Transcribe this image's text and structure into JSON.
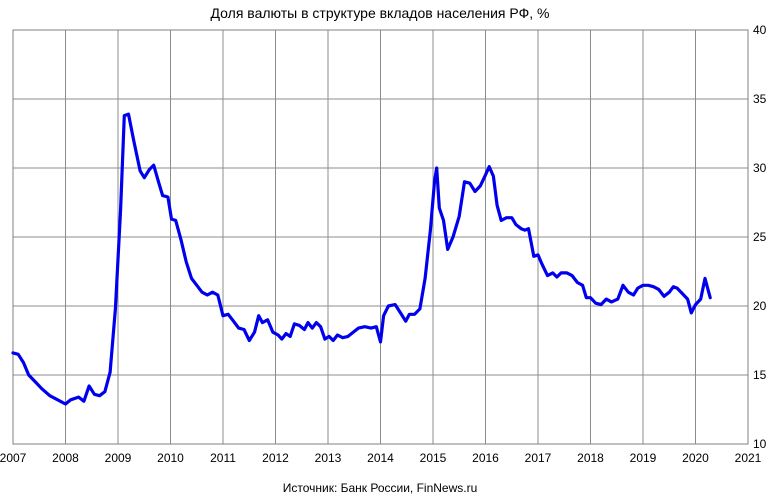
{
  "chart_data": {
    "type": "line",
    "title": "Доля валюты в структуре вкладов населения РФ, %",
    "source": "Источник: Банк России, FinNews.ru",
    "xlabel": "",
    "ylabel": "",
    "xlim": [
      2007,
      2021
    ],
    "ylim": [
      10,
      40
    ],
    "x_ticks": [
      "2007",
      "2008",
      "2009",
      "2010",
      "2011",
      "2012",
      "2013",
      "2014",
      "2015",
      "2016",
      "2017",
      "2018",
      "2019",
      "2020",
      "2021"
    ],
    "y_ticks": [
      "10",
      "15",
      "20",
      "25",
      "30",
      "35",
      "40"
    ],
    "y_axis_side": "right",
    "grid": true,
    "line_color": "#0000ee",
    "series": [
      {
        "values": [
          [
            2007.0,
            16.6
          ],
          [
            2007.1,
            16.5
          ],
          [
            2007.2,
            15.9
          ],
          [
            2007.3,
            15.0
          ],
          [
            2007.4,
            14.6
          ],
          [
            2007.55,
            14.0
          ],
          [
            2007.7,
            13.5
          ],
          [
            2007.85,
            13.2
          ],
          [
            2008.0,
            12.9
          ],
          [
            2008.1,
            13.2
          ],
          [
            2008.25,
            13.4
          ],
          [
            2008.35,
            13.1
          ],
          [
            2008.45,
            14.2
          ],
          [
            2008.55,
            13.6
          ],
          [
            2008.65,
            13.5
          ],
          [
            2008.75,
            13.8
          ],
          [
            2008.85,
            15.2
          ],
          [
            2008.95,
            19.8
          ],
          [
            2009.05,
            27.0
          ],
          [
            2009.12,
            33.8
          ],
          [
            2009.2,
            33.9
          ],
          [
            2009.3,
            32.0
          ],
          [
            2009.42,
            29.8
          ],
          [
            2009.5,
            29.3
          ],
          [
            2009.6,
            29.9
          ],
          [
            2009.68,
            30.2
          ],
          [
            2009.78,
            28.9
          ],
          [
            2009.85,
            28.0
          ],
          [
            2009.95,
            27.9
          ],
          [
            2010.02,
            26.3
          ],
          [
            2010.1,
            26.2
          ],
          [
            2010.2,
            24.8
          ],
          [
            2010.3,
            23.2
          ],
          [
            2010.4,
            22.0
          ],
          [
            2010.5,
            21.5
          ],
          [
            2010.6,
            21.0
          ],
          [
            2010.7,
            20.8
          ],
          [
            2010.8,
            21.0
          ],
          [
            2010.9,
            20.8
          ],
          [
            2011.0,
            19.3
          ],
          [
            2011.1,
            19.4
          ],
          [
            2011.2,
            18.9
          ],
          [
            2011.3,
            18.4
          ],
          [
            2011.4,
            18.3
          ],
          [
            2011.5,
            17.5
          ],
          [
            2011.6,
            18.1
          ],
          [
            2011.68,
            19.3
          ],
          [
            2011.75,
            18.8
          ],
          [
            2011.85,
            19.0
          ],
          [
            2011.95,
            18.1
          ],
          [
            2012.05,
            17.9
          ],
          [
            2012.12,
            17.6
          ],
          [
            2012.2,
            18.0
          ],
          [
            2012.28,
            17.8
          ],
          [
            2012.36,
            18.7
          ],
          [
            2012.45,
            18.6
          ],
          [
            2012.55,
            18.3
          ],
          [
            2012.62,
            18.8
          ],
          [
            2012.7,
            18.4
          ],
          [
            2012.78,
            18.8
          ],
          [
            2012.86,
            18.5
          ],
          [
            2012.94,
            17.6
          ],
          [
            2013.02,
            17.8
          ],
          [
            2013.1,
            17.5
          ],
          [
            2013.18,
            17.9
          ],
          [
            2013.28,
            17.7
          ],
          [
            2013.38,
            17.8
          ],
          [
            2013.48,
            18.1
          ],
          [
            2013.58,
            18.4
          ],
          [
            2013.7,
            18.5
          ],
          [
            2013.82,
            18.4
          ],
          [
            2013.92,
            18.5
          ],
          [
            2014.0,
            17.4
          ],
          [
            2014.06,
            19.3
          ],
          [
            2014.15,
            20.0
          ],
          [
            2014.28,
            20.1
          ],
          [
            2014.38,
            19.5
          ],
          [
            2014.48,
            18.9
          ],
          [
            2014.55,
            19.4
          ],
          [
            2014.65,
            19.4
          ],
          [
            2014.75,
            19.8
          ],
          [
            2014.85,
            22.0
          ],
          [
            2014.95,
            25.5
          ],
          [
            2015.03,
            29.1
          ],
          [
            2015.07,
            30.0
          ],
          [
            2015.12,
            27.1
          ],
          [
            2015.2,
            26.2
          ],
          [
            2015.28,
            24.1
          ],
          [
            2015.38,
            25.0
          ],
          [
            2015.5,
            26.5
          ],
          [
            2015.6,
            29.0
          ],
          [
            2015.7,
            28.9
          ],
          [
            2015.8,
            28.3
          ],
          [
            2015.9,
            28.7
          ],
          [
            2016.0,
            29.5
          ],
          [
            2016.07,
            30.1
          ],
          [
            2016.15,
            29.4
          ],
          [
            2016.22,
            27.3
          ],
          [
            2016.3,
            26.2
          ],
          [
            2016.4,
            26.4
          ],
          [
            2016.5,
            26.4
          ],
          [
            2016.58,
            25.9
          ],
          [
            2016.68,
            25.6
          ],
          [
            2016.75,
            25.5
          ],
          [
            2016.82,
            25.6
          ],
          [
            2016.92,
            23.6
          ],
          [
            2017.0,
            23.7
          ],
          [
            2017.08,
            23.0
          ],
          [
            2017.18,
            22.2
          ],
          [
            2017.28,
            22.4
          ],
          [
            2017.36,
            22.1
          ],
          [
            2017.44,
            22.4
          ],
          [
            2017.55,
            22.4
          ],
          [
            2017.65,
            22.2
          ],
          [
            2017.75,
            21.7
          ],
          [
            2017.85,
            21.5
          ],
          [
            2017.92,
            20.6
          ],
          [
            2018.0,
            20.6
          ],
          [
            2018.1,
            20.2
          ],
          [
            2018.2,
            20.1
          ],
          [
            2018.3,
            20.5
          ],
          [
            2018.4,
            20.3
          ],
          [
            2018.52,
            20.5
          ],
          [
            2018.62,
            21.5
          ],
          [
            2018.72,
            21.0
          ],
          [
            2018.82,
            20.8
          ],
          [
            2018.9,
            21.3
          ],
          [
            2019.0,
            21.5
          ],
          [
            2019.1,
            21.5
          ],
          [
            2019.2,
            21.4
          ],
          [
            2019.3,
            21.2
          ],
          [
            2019.4,
            20.7
          ],
          [
            2019.5,
            21.0
          ],
          [
            2019.58,
            21.4
          ],
          [
            2019.65,
            21.3
          ],
          [
            2019.75,
            20.9
          ],
          [
            2019.85,
            20.5
          ],
          [
            2019.92,
            19.5
          ],
          [
            2020.0,
            20.1
          ],
          [
            2020.1,
            20.5
          ],
          [
            2020.18,
            22.0
          ],
          [
            2020.28,
            20.6
          ]
        ]
      }
    ]
  }
}
